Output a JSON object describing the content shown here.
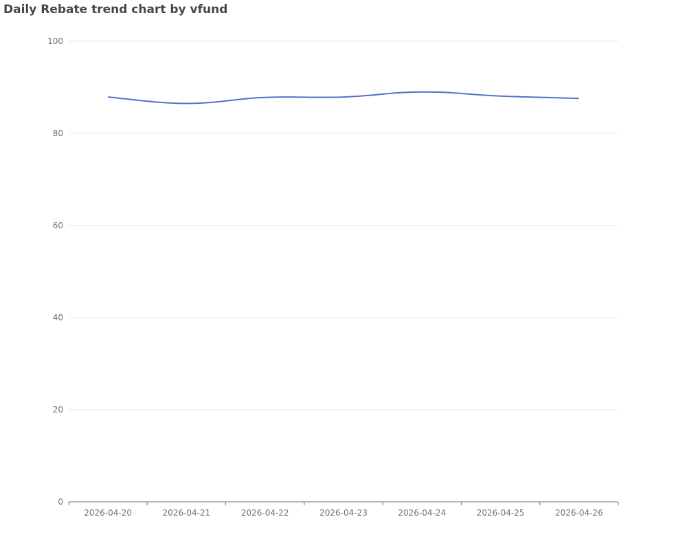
{
  "chart_data": {
    "type": "line",
    "title": "Daily Rebate trend chart by vfund",
    "xlabel": "",
    "ylabel": "",
    "categories": [
      "2026-04-20",
      "2026-04-21",
      "2026-04-22",
      "2026-04-23",
      "2026-04-24",
      "2026-04-25",
      "2026-04-26"
    ],
    "series": [
      {
        "values": [
          87.9,
          86.5,
          87.8,
          87.9,
          89.0,
          88.1,
          87.6
        ],
        "color": "#5470c6"
      }
    ],
    "ylim": [
      0,
      100
    ],
    "yticks": [
      0,
      20,
      40,
      60,
      80,
      100
    ],
    "smooth": true,
    "grid": true,
    "colors": {
      "grid": "#e0e6f1",
      "axis": "#6e7079",
      "title": "#464646"
    }
  }
}
